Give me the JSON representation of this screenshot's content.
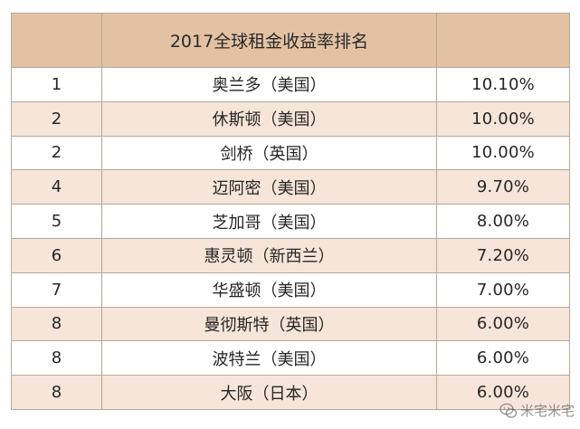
{
  "table": {
    "title": "2017全球租金收益率排名",
    "rows": [
      {
        "rank": "1",
        "city": "奥兰多（美国）",
        "yield": "10.10%",
        "shade": "plain"
      },
      {
        "rank": "2",
        "city": "休斯顿（美国）",
        "yield": "10.00%",
        "shade": "shaded"
      },
      {
        "rank": "2",
        "city": "剑桥（英国）",
        "yield": "10.00%",
        "shade": "plain"
      },
      {
        "rank": "4",
        "city": "迈阿密（美国）",
        "yield": "9.70%",
        "shade": "shaded"
      },
      {
        "rank": "5",
        "city": "芝加哥（美国）",
        "yield": "8.00%",
        "shade": "plain"
      },
      {
        "rank": "6",
        "city": "惠灵顿（新西兰）",
        "yield": "7.20%",
        "shade": "shaded"
      },
      {
        "rank": "7",
        "city": "华盛顿（美国）",
        "yield": "7.00%",
        "shade": "plain"
      },
      {
        "rank": "8",
        "city": "曼彻斯特（英国）",
        "yield": "6.00%",
        "shade": "shaded"
      },
      {
        "rank": "8",
        "city": "波特兰（美国）",
        "yield": "6.00%",
        "shade": "plain"
      },
      {
        "rank": "8",
        "city": "大阪（日本）",
        "yield": "6.00%",
        "shade": "shaded"
      }
    ]
  },
  "watermark": {
    "text": "米宅米宅",
    "icon": "wechat-icon"
  },
  "colors": {
    "header_bg": "#e3c2a3",
    "shaded_row_bg": "#f6e5d8",
    "border": "#b5a898"
  }
}
